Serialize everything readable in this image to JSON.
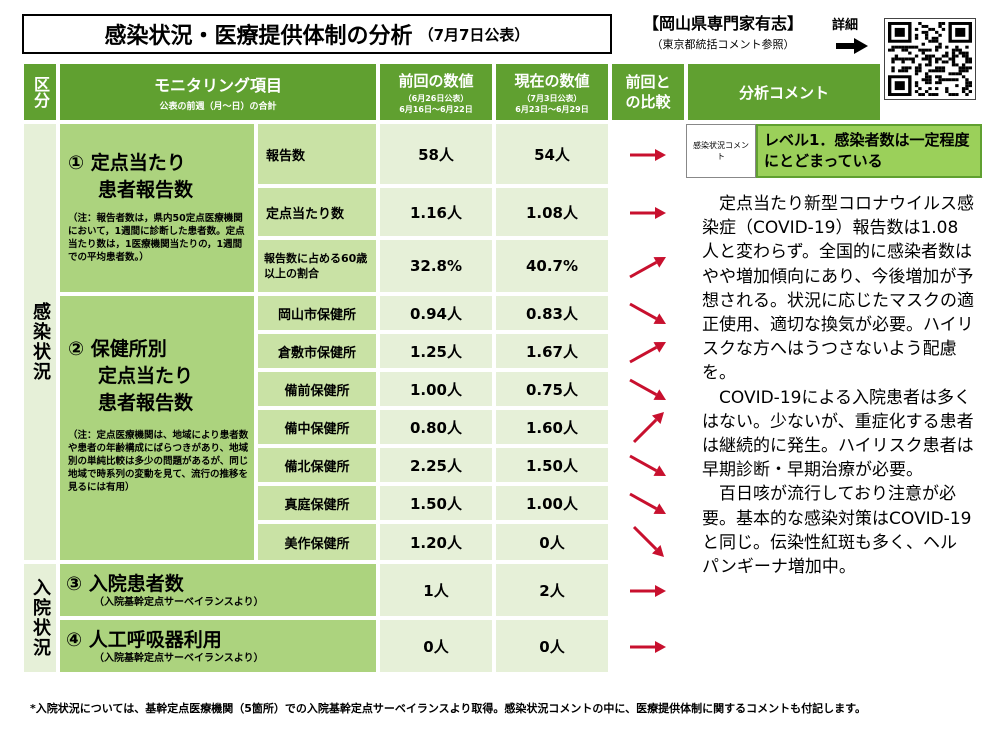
{
  "header": {
    "title": "感染状況・医療提供体制の分析",
    "title_sub": "（7月7日公表）",
    "author": "【岡山県専門家有志】",
    "author_note": "（東京都統括コメント参照）",
    "detail_label": "詳細"
  },
  "columns": {
    "category": "区分",
    "item": "モニタリング項目",
    "item_note": "公表の前週（月～日）の合計",
    "prev": "前回の数値",
    "prev_date1": "（6月26日公表）",
    "prev_date2": "6月16日～6月22日",
    "curr": "現在の数値",
    "curr_date1": "（7月3日公表）",
    "curr_date2": "6月23日～6月29日",
    "compare": "前回との比較",
    "comment": "分析コメント"
  },
  "categories": {
    "infection": "感染状況",
    "hospital": "入院状況"
  },
  "items": {
    "i1_title": "① 定点当たり",
    "i1_title2": "患者報告数",
    "i1_note": "（注：報告者数は，県内50定点医療機関において，1週間に診断した患者数。定点当たり数は，1医療機関当たりの，1週間での平均患者数。）",
    "i2_title": "② 保健所別",
    "i2_title2": "定点当たり",
    "i2_title3": "患者報告数",
    "i2_note": "（注：定点医療機関は、地域により患者数や患者の年齢構成にばらつきがあり、地域別の単純比較は多少の問題があるが、同じ地域で時系列の変動を見て、流行の推移を見るには有用）",
    "i3_title": "③ 入院患者数",
    "i3_note": "（入院基幹定点サーベイランスより）",
    "i4_title": "④ 人工呼吸器利用",
    "i4_note": "（入院基幹定点サーベイランスより）"
  },
  "rows": [
    {
      "label": "報告数",
      "prev": "58人",
      "curr": "54人",
      "trend": "flat"
    },
    {
      "label": "定点当たり数",
      "prev": "1.16人",
      "curr": "1.08人",
      "trend": "flat"
    },
    {
      "label": "報告数に占める60歳以上の割合",
      "prev": "32.8%",
      "curr": "40.7%",
      "trend": "up"
    },
    {
      "label": "岡山市保健所",
      "prev": "0.94人",
      "curr": "0.83人",
      "trend": "down"
    },
    {
      "label": "倉敷市保健所",
      "prev": "1.25人",
      "curr": "1.67人",
      "trend": "up"
    },
    {
      "label": "備前保健所",
      "prev": "1.00人",
      "curr": "0.75人",
      "trend": "down"
    },
    {
      "label": "備中保健所",
      "prev": "0.80人",
      "curr": "1.60人",
      "trend": "up-steep"
    },
    {
      "label": "備北保健所",
      "prev": "2.25人",
      "curr": "1.50人",
      "trend": "down"
    },
    {
      "label": "真庭保健所",
      "prev": "1.50人",
      "curr": "1.00人",
      "trend": "down"
    },
    {
      "label": "美作保健所",
      "prev": "1.20人",
      "curr": "0人",
      "trend": "down-steep"
    },
    {
      "label": "",
      "prev": "1人",
      "curr": "2人",
      "trend": "flat"
    },
    {
      "label": "",
      "prev": "0人",
      "curr": "0人",
      "trend": "flat"
    }
  ],
  "comment": {
    "label": "感染状況コメント",
    "level": "レベル1．感染者数は一定程度にとどまっている",
    "p1": "定点当たり新型コロナウイルス感染症（COVID-19）報告数は1.08人と変わらず。全国的に感染者数はやや増加傾向にあり、今後増加が予想される。状況に応じたマスクの適正使用、適切な換気が必要。ハイリスクな方へはうつさないよう配慮を。",
    "p2": "COVID-19による入院患者は多くはない。少ないが、重症化する患者は継続的に発生。ハイリスク患者は早期診断・早期治療が必要。",
    "p3": "百日咳が流行しており注意が必要。基本的な感染対策はCOVID-19と同じ。伝染性紅斑も多く、ヘルパンギーナ増加中。"
  },
  "footer": "*入院状況については、基幹定点医療機関（5箇所）での入院基幹定点サーベイランスより取得。感染状況コメントの中に、医療提供体制に関するコメントも付記します。",
  "colors": {
    "header_green": "#60a030",
    "item_green": "#acd37e",
    "value_bg": "#e6f0d8",
    "level_green": "#9bd05a",
    "arrow_red": "#c8102e"
  },
  "icons": [
    "right-arrow-icon",
    "qr-code-icon",
    "trend-arrow-icon"
  ]
}
